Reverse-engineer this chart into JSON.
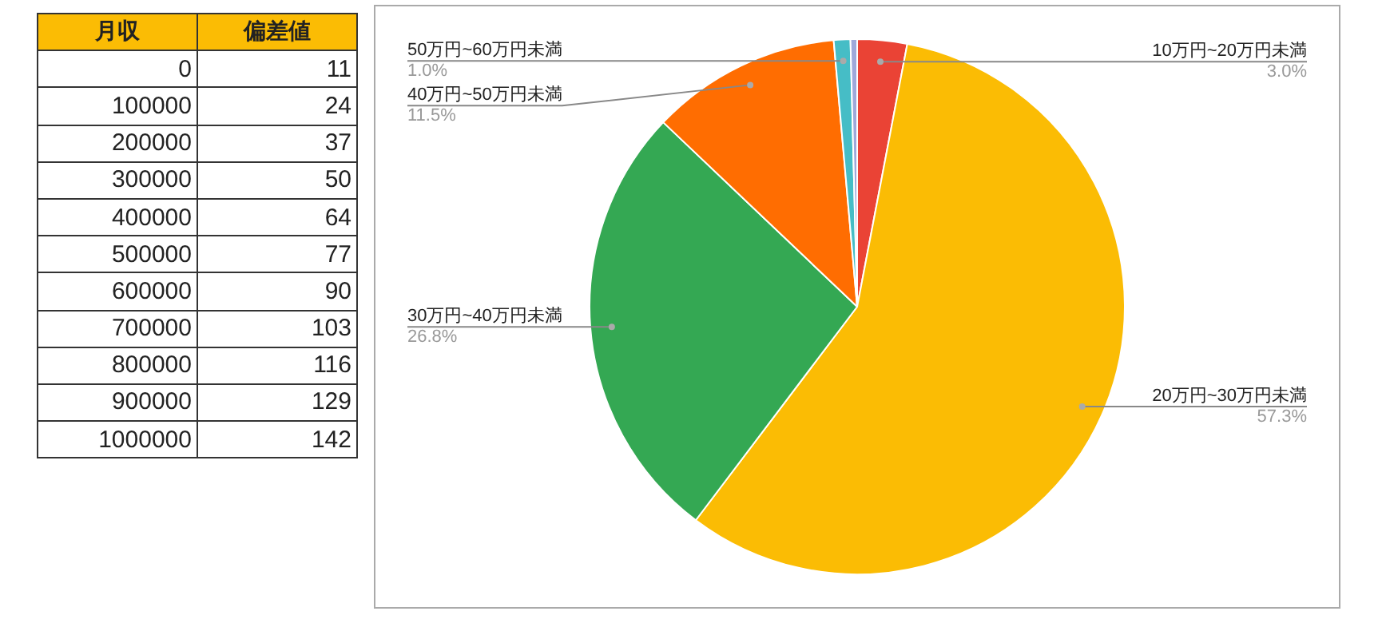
{
  "chart_data": [
    {
      "type": "heatmap",
      "ylabel": "月収",
      "categories": [
        "偏差値"
      ],
      "y_categories": [
        "0",
        "100000",
        "200000",
        "300000",
        "400000",
        "500000",
        "600000",
        "700000",
        "800000",
        "900000",
        "1000000"
      ],
      "cells": [
        [
          11
        ],
        [
          24
        ],
        [
          37
        ],
        [
          50
        ],
        [
          64
        ],
        [
          77
        ],
        [
          90
        ],
        [
          103
        ],
        [
          116
        ],
        [
          129
        ],
        [
          142
        ]
      ],
      "color": "#fbbc04",
      "data_labels": true
    },
    {
      "type": "pie",
      "categories": [
        "10万円~20万円未満",
        "20万円~30万円未満",
        "30万円~40万円未満",
        "40万円~50万円未満",
        "50万円~60万円未満",
        null
      ],
      "values": [
        3.0,
        57.3,
        26.8,
        11.5,
        1.0,
        0.4
      ],
      "colors": [
        "#ea4335",
        "#fbbc04",
        "#34a853",
        "#ff6d01",
        "#46bdc6",
        "#9fa8da"
      ],
      "value_labels": [
        "3.0%",
        "57.3%",
        "26.8%",
        "11.5%",
        "1.0%",
        null
      ],
      "legend": false
    }
  ]
}
